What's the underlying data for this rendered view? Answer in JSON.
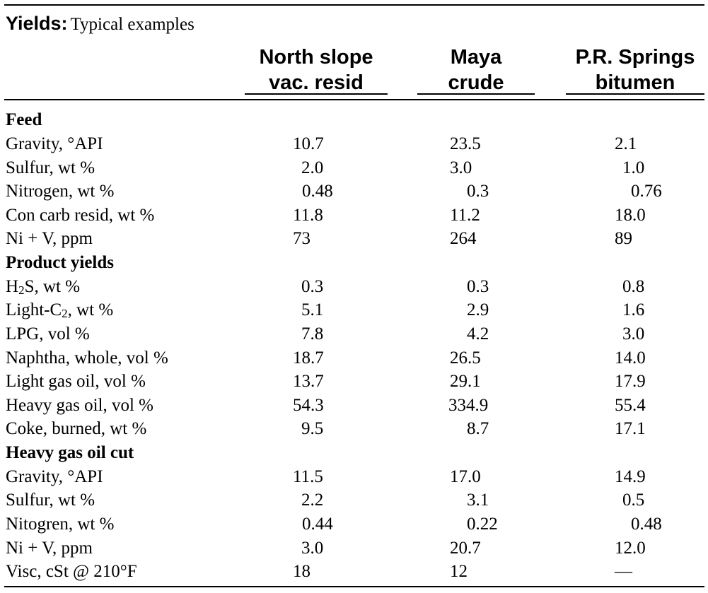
{
  "title": {
    "bold": "Yields:",
    "rest": "Typical examples"
  },
  "columns": [
    {
      "line1": "North slope",
      "line2": "vac. resid"
    },
    {
      "line1": "Maya",
      "line2": "crude"
    },
    {
      "line1": "P.R. Springs",
      "line2": "bitumen"
    }
  ],
  "sections": {
    "feed": "Feed",
    "product_yields": "Product yields",
    "heavy_gas_oil_cut": "Heavy gas oil cut"
  },
  "rows": [
    {
      "label": "Gravity, °API",
      "values": [
        "10.7",
        "23.5",
        "2.1"
      ]
    },
    {
      "label": "Sulfur, wt %",
      "values": [
        "2.0",
        "3.0",
        "1.0"
      ]
    },
    {
      "label": "Nitrogen, wt %",
      "values": [
        "0.48",
        "0.3",
        "0.76"
      ]
    },
    {
      "label": "Con carb resid, wt %",
      "values": [
        "11.8",
        "11.2",
        "18.0"
      ]
    },
    {
      "label": "Ni + V, ppm",
      "values": [
        "73",
        "264",
        "89"
      ]
    },
    {
      "label_pre": "H",
      "label_sub": "2",
      "label_post": "S, wt %",
      "values": [
        "0.3",
        "0.3",
        "0.8"
      ]
    },
    {
      "label_pre": "Light-C",
      "label_sub": "2",
      "label_post": ", wt %",
      "values": [
        "5.1",
        "2.9",
        "1.6"
      ]
    },
    {
      "label": "LPG, vol %",
      "values": [
        "7.8",
        "4.2",
        "3.0"
      ]
    },
    {
      "label": "Naphtha, whole, vol %",
      "values": [
        "18.7",
        "26.5",
        "14.0"
      ]
    },
    {
      "label": "Light gas oil, vol %",
      "values": [
        "13.7",
        "29.1",
        "17.9"
      ]
    },
    {
      "label": "Heavy gas oil, vol %",
      "values": [
        "54.3",
        "334.9",
        "55.4"
      ]
    },
    {
      "label": "Coke, burned, wt %",
      "values": [
        "9.5",
        "8.7",
        "17.1"
      ]
    },
    {
      "label": "Gravity, °API",
      "values": [
        "11.5",
        "17.0",
        "14.9"
      ]
    },
    {
      "label": "Sulfur, wt %",
      "values": [
        "2.2",
        "3.1",
        "0.5"
      ]
    },
    {
      "label": "Nitogren, wt %",
      "values": [
        "0.44",
        "0.22",
        "0.48"
      ]
    },
    {
      "label": "Ni + V, ppm",
      "values": [
        "3.0",
        "20.7",
        "12.0"
      ]
    },
    {
      "label": "Visc, cSt @ 210°F",
      "values": [
        "18",
        "12",
        "—"
      ]
    }
  ]
}
